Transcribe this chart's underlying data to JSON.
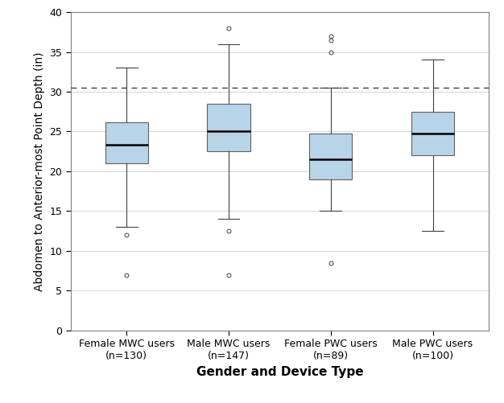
{
  "categories": [
    "Female MWC users\n(n=130)",
    "Male MWC users\n(n=147)",
    "Female PWC users\n(n=89)",
    "Male PWC users\n(n=100)"
  ],
  "box_stats": [
    {
      "med": 23.3,
      "q1": 21.0,
      "q3": 26.2,
      "whislo": 13.0,
      "whishi": 33.0,
      "fliers": [
        7.0,
        12.0
      ]
    },
    {
      "med": 25.0,
      "q1": 22.5,
      "q3": 28.5,
      "whislo": 14.0,
      "whishi": 36.0,
      "fliers": [
        7.0,
        12.5,
        38.0
      ]
    },
    {
      "med": 21.5,
      "q1": 19.0,
      "q3": 24.7,
      "whislo": 15.0,
      "whishi": 30.5,
      "fliers": [
        8.5,
        35.0,
        36.5,
        37.0
      ]
    },
    {
      "med": 24.7,
      "q1": 22.0,
      "q3": 27.5,
      "whislo": 12.5,
      "whishi": 34.0,
      "fliers": []
    }
  ],
  "dashed_line_y": 30.5,
  "ylabel": "Abdomen to Anterior-most Point Depth (in)",
  "xlabel": "Gender and Device Type",
  "ylim": [
    0,
    40
  ],
  "yticks": [
    0,
    5,
    10,
    15,
    20,
    25,
    30,
    35,
    40
  ],
  "box_facecolor": "#b8d4e8",
  "box_edgecolor": "#606060",
  "median_color": "#000000",
  "whisker_color": "#404040",
  "flier_color": "#404040",
  "background_color": "#ffffff",
  "grid_color": "#d8d8d8",
  "dashed_line_color": "#404040",
  "spine_color": "#808080",
  "label_fontsize": 10,
  "tick_fontsize": 9,
  "xlabel_fontsize": 11
}
